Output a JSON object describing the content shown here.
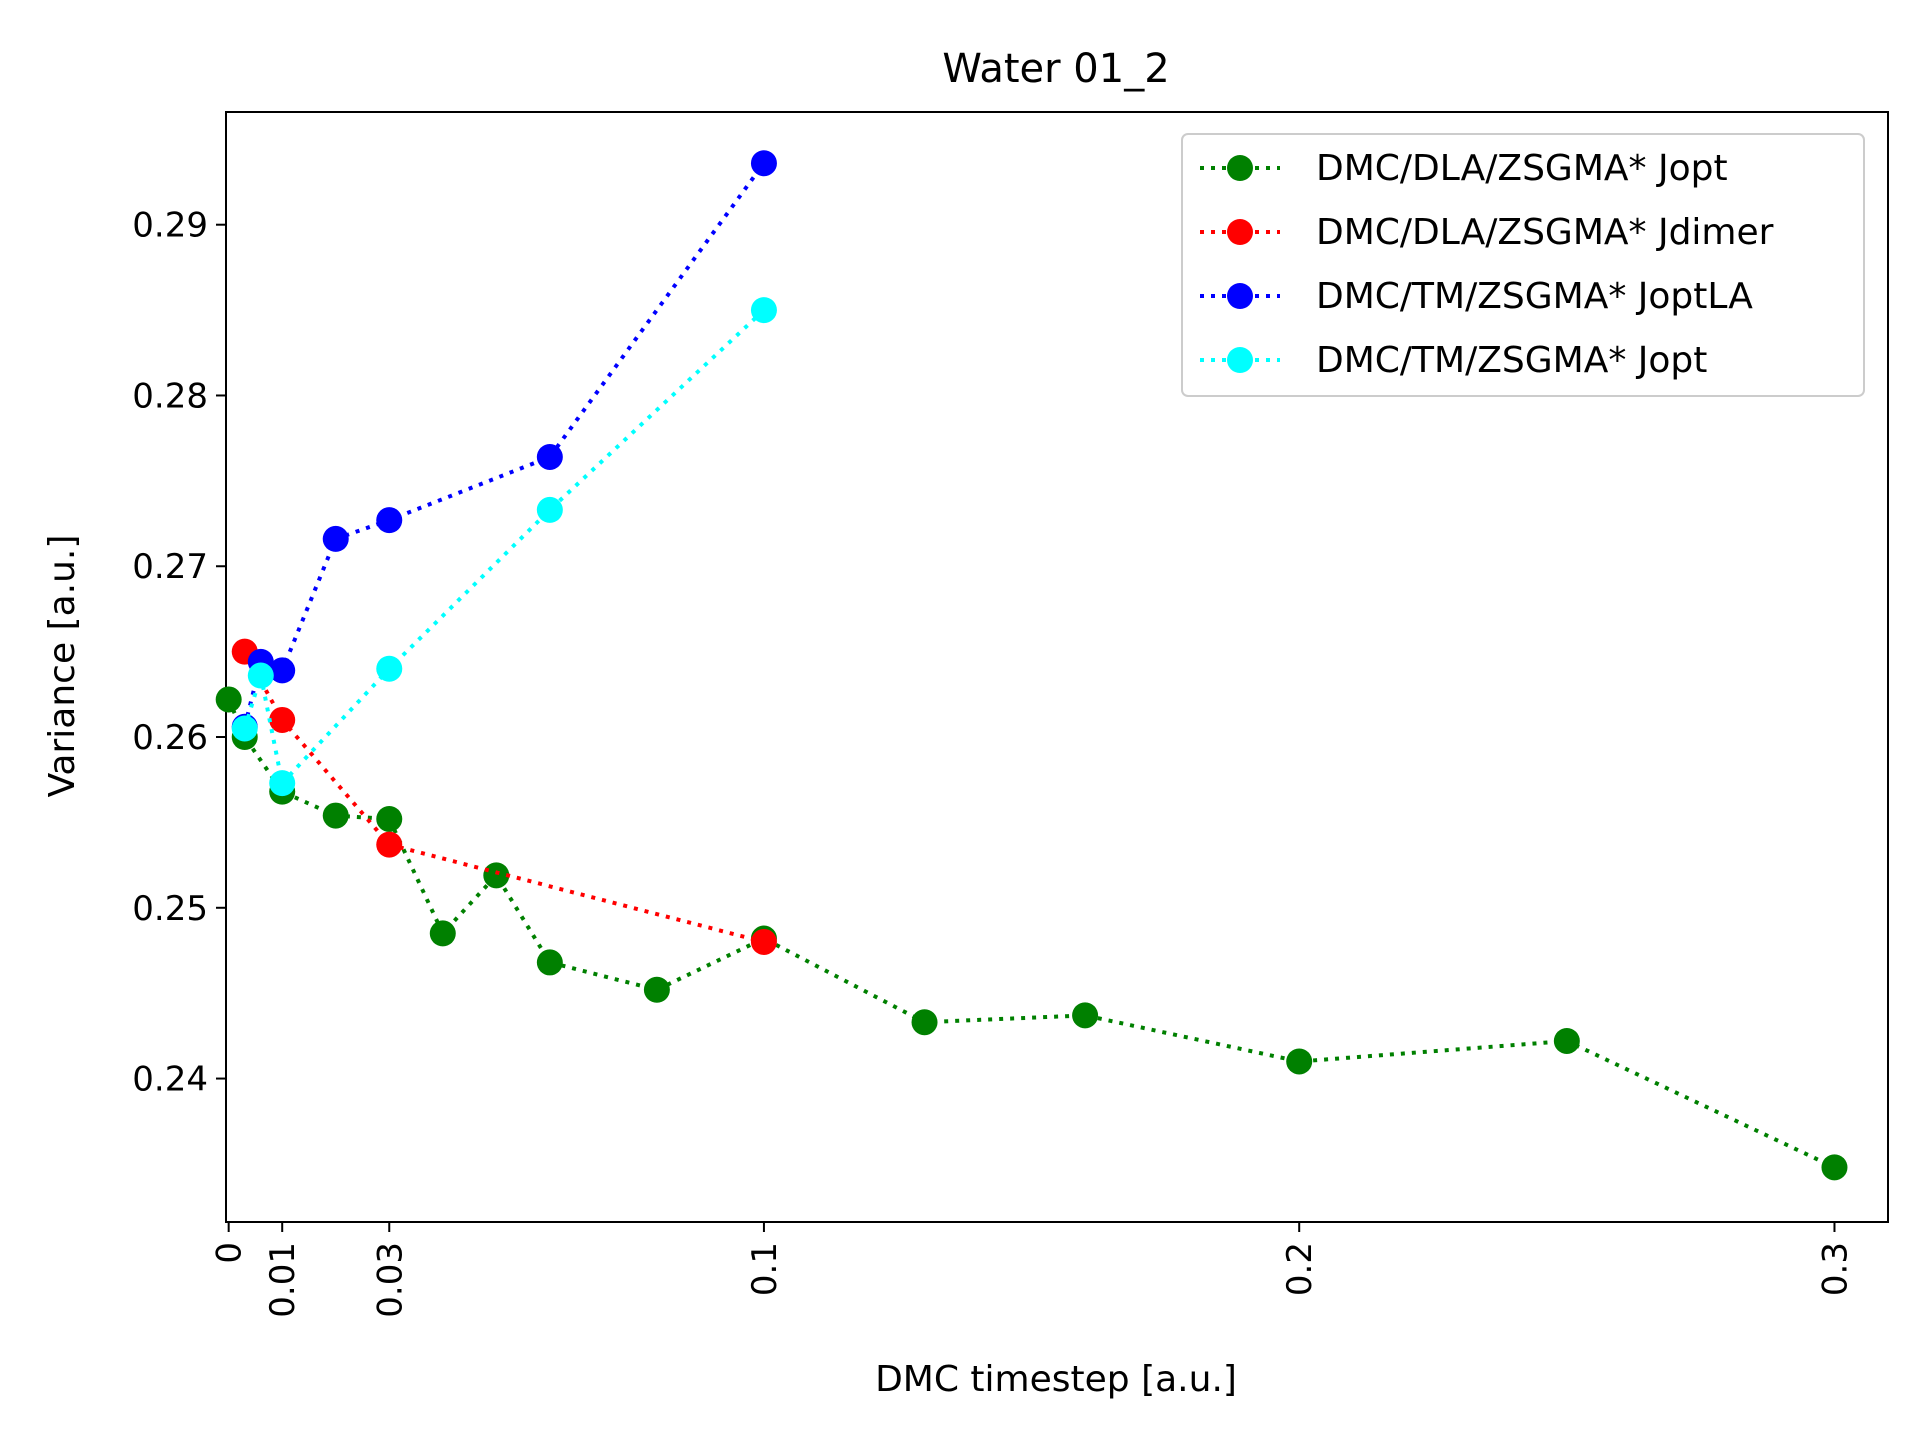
{
  "chart_data": {
    "type": "line",
    "title": "Water 01_2",
    "xlabel": "DMC timestep [a.u.]",
    "ylabel": "Variance [a.u.]",
    "xlim": [
      -0.0005,
      0.31
    ],
    "ylim": [
      0.2316,
      0.2966
    ],
    "x_ticks": [
      {
        "value": 0,
        "label": "0"
      },
      {
        "value": 0.01,
        "label": "0.01"
      },
      {
        "value": 0.03,
        "label": "0.03"
      },
      {
        "value": 0.1,
        "label": "0.1"
      },
      {
        "value": 0.2,
        "label": "0.2"
      },
      {
        "value": 0.3,
        "label": "0.3"
      }
    ],
    "y_ticks": [
      {
        "value": 0.24,
        "label": "0.24"
      },
      {
        "value": 0.25,
        "label": "0.25"
      },
      {
        "value": 0.26,
        "label": "0.26"
      },
      {
        "value": 0.27,
        "label": "0.27"
      },
      {
        "value": 0.28,
        "label": "0.28"
      },
      {
        "value": 0.29,
        "label": "0.29"
      }
    ],
    "grid": false,
    "legend_position": "top-right",
    "series": [
      {
        "name": "DMC/DLA/ZSGMA* Jopt",
        "color": "#008000",
        "x": [
          0,
          0.003,
          0.01,
          0.02,
          0.03,
          0.04,
          0.05,
          0.06,
          0.08,
          0.1,
          0.13,
          0.16,
          0.2,
          0.25,
          0.3
        ],
        "y": [
          0.2622,
          0.26,
          0.2568,
          0.2554,
          0.2552,
          0.2485,
          0.2519,
          0.2468,
          0.2452,
          0.2482,
          0.2433,
          0.2437,
          0.241,
          0.2422,
          0.2348
        ]
      },
      {
        "name": "DMC/DLA/ZSGMA* Jdimer",
        "color": "#ff0000",
        "x": [
          0.003,
          0.01,
          0.03,
          0.1
        ],
        "y": [
          0.265,
          0.261,
          0.2537,
          0.248
        ]
      },
      {
        "name": "DMC/TM/ZSGMA* JoptLA",
        "color": "#0000ff",
        "x": [
          0.003,
          0.006,
          0.01,
          0.02,
          0.03,
          0.06,
          0.1
        ],
        "y": [
          0.2606,
          0.2644,
          0.2639,
          0.2716,
          0.2727,
          0.2764,
          0.2936
        ]
      },
      {
        "name": "DMC/TM/ZSGMA* Jopt",
        "color": "#00ffff",
        "x": [
          0.003,
          0.006,
          0.01,
          0.03,
          0.06,
          0.1
        ],
        "y": [
          0.2605,
          0.2636,
          0.2573,
          0.264,
          0.2733,
          0.285
        ]
      }
    ]
  }
}
